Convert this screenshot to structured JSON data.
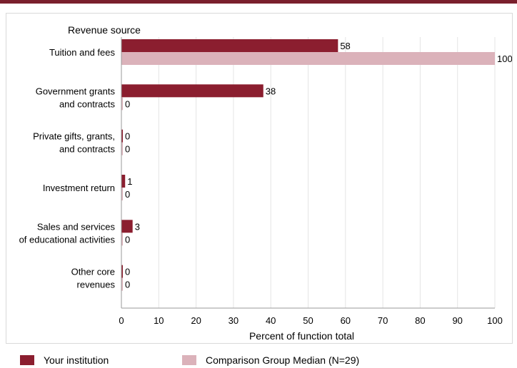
{
  "chart_data": {
    "type": "bar",
    "orientation": "horizontal",
    "ylabel": "Revenue source",
    "xlabel": "Percent of function total",
    "xlim": [
      0,
      100
    ],
    "xticks": [
      "0",
      "10",
      "20",
      "30",
      "40",
      "50",
      "60",
      "70",
      "80",
      "90",
      "100"
    ],
    "categories": [
      [
        "Tuition and fees"
      ],
      [
        "Government grants",
        "and contracts"
      ],
      [
        "Private gifts, grants,",
        "and contracts"
      ],
      [
        "Investment return"
      ],
      [
        "Sales and services",
        "of educational activities"
      ],
      [
        "Other core",
        "revenues"
      ]
    ],
    "series": [
      {
        "name": "Your institution",
        "color": "#8b1e2f",
        "values": [
          58,
          38,
          0,
          1,
          3,
          0
        ]
      },
      {
        "name": "Comparison Group Median (N=29)",
        "color": "#dbb2ba",
        "values": [
          100,
          0,
          0,
          0,
          0,
          0
        ]
      }
    ],
    "grid": true,
    "legend_position": "bottom"
  }
}
